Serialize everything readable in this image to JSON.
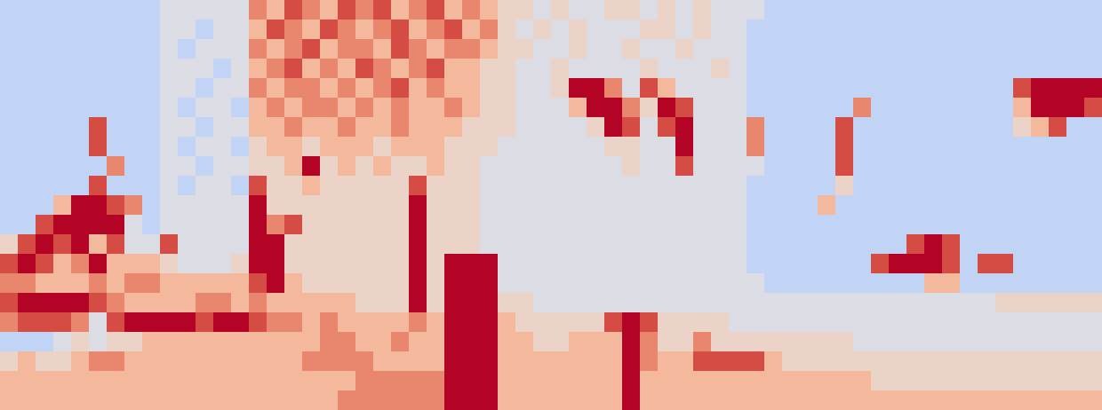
{
  "chart_data": {
    "type": "heatmap",
    "tick_labels": false,
    "color_range": [
      0,
      9
    ],
    "cells": [
      [
        3,
        3,
        3,
        3,
        3,
        3,
        3,
        3,
        3,
        4,
        4,
        4,
        4,
        4,
        7,
        6,
        8,
        7,
        6,
        8,
        7,
        8,
        6,
        7,
        8,
        6,
        7,
        6,
        5,
        5,
        4,
        5,
        4,
        4,
        5,
        5,
        4,
        5,
        4,
        5,
        4,
        4,
        4,
        3,
        3,
        3,
        3,
        3,
        3,
        3,
        3,
        3,
        3,
        3,
        3,
        3,
        3,
        3,
        3,
        3,
        3,
        3
      ],
      [
        3,
        3,
        3,
        3,
        3,
        3,
        3,
        3,
        3,
        4,
        4,
        3,
        4,
        4,
        6,
        8,
        7,
        6,
        8,
        7,
        6,
        7,
        8,
        6,
        7,
        8,
        6,
        7,
        5,
        4,
        5,
        4,
        5,
        4,
        4,
        4,
        5,
        5,
        4,
        5,
        4,
        4,
        3,
        3,
        3,
        3,
        3,
        3,
        3,
        3,
        3,
        3,
        3,
        3,
        3,
        3,
        3,
        3,
        3,
        3,
        3,
        3
      ],
      [
        3,
        3,
        3,
        3,
        3,
        3,
        3,
        3,
        3,
        4,
        3,
        4,
        4,
        4,
        7,
        6,
        7,
        8,
        6,
        7,
        7,
        6,
        8,
        7,
        6,
        7,
        7,
        6,
        5,
        5,
        4,
        4,
        5,
        4,
        4,
        5,
        4,
        4,
        5,
        4,
        4,
        4,
        3,
        3,
        3,
        3,
        3,
        3,
        3,
        3,
        3,
        3,
        3,
        3,
        3,
        3,
        3,
        3,
        3,
        3,
        3,
        3
      ],
      [
        3,
        3,
        3,
        3,
        3,
        3,
        3,
        3,
        3,
        4,
        4,
        4,
        3,
        4,
        6,
        7,
        8,
        6,
        7,
        6,
        8,
        7,
        6,
        7,
        8,
        6,
        6,
        5,
        5,
        4,
        4,
        5,
        4,
        4,
        4,
        4,
        5,
        4,
        4,
        4,
        5,
        4,
        3,
        3,
        3,
        3,
        3,
        3,
        3,
        3,
        3,
        3,
        3,
        3,
        3,
        3,
        3,
        3,
        3,
        3,
        3,
        3
      ],
      [
        3,
        3,
        3,
        3,
        3,
        3,
        3,
        3,
        3,
        4,
        4,
        3,
        4,
        4,
        7,
        6,
        7,
        7,
        6,
        7,
        6,
        7,
        8,
        6,
        7,
        6,
        6,
        5,
        5,
        4,
        4,
        5,
        9,
        9,
        7,
        4,
        8,
        6,
        4,
        4,
        4,
        4,
        3,
        3,
        3,
        3,
        3,
        3,
        3,
        3,
        3,
        3,
        3,
        3,
        3,
        3,
        3,
        8,
        9,
        9,
        9,
        9
      ],
      [
        3,
        3,
        3,
        3,
        3,
        3,
        3,
        3,
        3,
        4,
        3,
        4,
        4,
        3,
        6,
        7,
        6,
        7,
        7,
        6,
        7,
        6,
        7,
        6,
        6,
        7,
        6,
        5,
        5,
        4,
        4,
        4,
        6,
        9,
        9,
        7,
        5,
        9,
        8,
        4,
        4,
        4,
        3,
        3,
        3,
        3,
        3,
        3,
        7,
        3,
        3,
        3,
        3,
        3,
        3,
        3,
        3,
        6,
        9,
        9,
        9,
        8
      ],
      [
        3,
        3,
        3,
        3,
        3,
        8,
        3,
        3,
        3,
        4,
        4,
        3,
        4,
        4,
        6,
        6,
        7,
        6,
        6,
        7,
        6,
        6,
        7,
        6,
        6,
        6,
        5,
        5,
        5,
        4,
        4,
        4,
        4,
        5,
        9,
        8,
        4,
        8,
        9,
        4,
        4,
        4,
        7,
        3,
        3,
        3,
        3,
        8,
        3,
        3,
        3,
        3,
        3,
        3,
        3,
        3,
        3,
        5,
        6,
        8,
        3,
        3
      ],
      [
        3,
        3,
        3,
        3,
        3,
        8,
        3,
        3,
        3,
        4,
        3,
        4,
        4,
        3,
        5,
        6,
        6,
        5,
        6,
        6,
        6,
        5,
        6,
        6,
        6,
        5,
        5,
        5,
        4,
        4,
        4,
        4,
        4,
        4,
        5,
        5,
        4,
        4,
        9,
        4,
        4,
        4,
        7,
        3,
        3,
        3,
        3,
        8,
        3,
        3,
        3,
        3,
        3,
        3,
        3,
        3,
        3,
        3,
        3,
        3,
        3,
        3
      ],
      [
        3,
        3,
        3,
        3,
        3,
        3,
        7,
        3,
        3,
        4,
        4,
        3,
        4,
        4,
        5,
        5,
        6,
        9,
        5,
        6,
        5,
        6,
        5,
        5,
        6,
        5,
        5,
        4,
        4,
        4,
        4,
        4,
        4,
        4,
        4,
        5,
        4,
        4,
        8,
        4,
        4,
        4,
        4,
        3,
        3,
        3,
        3,
        8,
        3,
        3,
        3,
        3,
        3,
        3,
        3,
        3,
        3,
        3,
        3,
        3,
        3,
        3
      ],
      [
        3,
        3,
        3,
        3,
        3,
        8,
        3,
        3,
        3,
        4,
        3,
        4,
        4,
        3,
        8,
        5,
        5,
        6,
        5,
        5,
        5,
        5,
        5,
        8,
        5,
        5,
        5,
        4,
        4,
        4,
        4,
        4,
        4,
        4,
        4,
        4,
        4,
        4,
        4,
        4,
        4,
        4,
        3,
        3,
        3,
        3,
        3,
        5,
        3,
        3,
        3,
        3,
        3,
        3,
        3,
        3,
        3,
        3,
        3,
        3,
        3,
        3
      ],
      [
        3,
        3,
        3,
        6,
        9,
        9,
        8,
        7,
        3,
        4,
        4,
        4,
        4,
        4,
        9,
        5,
        5,
        5,
        5,
        5,
        5,
        5,
        5,
        9,
        5,
        5,
        5,
        4,
        4,
        4,
        4,
        4,
        4,
        4,
        4,
        4,
        4,
        4,
        4,
        4,
        4,
        4,
        3,
        3,
        3,
        3,
        6,
        3,
        3,
        3,
        3,
        3,
        3,
        3,
        3,
        3,
        3,
        3,
        3,
        3,
        3,
        3
      ],
      [
        3,
        3,
        8,
        9,
        9,
        9,
        9,
        4,
        3,
        4,
        4,
        4,
        4,
        4,
        9,
        7,
        8,
        5,
        5,
        5,
        5,
        5,
        5,
        9,
        5,
        5,
        5,
        4,
        4,
        4,
        4,
        4,
        4,
        4,
        4,
        4,
        4,
        4,
        4,
        4,
        4,
        4,
        3,
        3,
        3,
        3,
        3,
        3,
        3,
        3,
        3,
        3,
        3,
        3,
        3,
        3,
        3,
        3,
        3,
        3,
        3,
        3
      ],
      [
        5,
        8,
        9,
        8,
        9,
        6,
        8,
        4,
        4,
        8,
        4,
        4,
        4,
        4,
        9,
        9,
        5,
        5,
        5,
        5,
        5,
        5,
        5,
        9,
        5,
        5,
        5,
        4,
        4,
        4,
        4,
        4,
        4,
        4,
        4,
        4,
        4,
        4,
        4,
        4,
        4,
        4,
        3,
        3,
        3,
        3,
        3,
        3,
        3,
        3,
        3,
        8,
        9,
        8,
        3,
        3,
        3,
        3,
        3,
        3,
        3,
        3
      ],
      [
        8,
        9,
        8,
        6,
        7,
        9,
        6,
        6,
        6,
        5,
        4,
        4,
        4,
        5,
        9,
        9,
        5,
        5,
        5,
        5,
        5,
        5,
        5,
        9,
        5,
        9,
        9,
        9,
        4,
        4,
        4,
        4,
        4,
        4,
        4,
        4,
        4,
        4,
        4,
        4,
        4,
        4,
        3,
        3,
        3,
        3,
        3,
        3,
        3,
        8,
        9,
        9,
        9,
        8,
        3,
        8,
        8,
        3,
        3,
        3,
        3,
        3
      ],
      [
        7,
        7,
        6,
        6,
        6,
        7,
        6,
        7,
        7,
        6,
        6,
        6,
        6,
        6,
        8,
        9,
        6,
        5,
        5,
        5,
        5,
        5,
        5,
        9,
        5,
        9,
        9,
        9,
        4,
        4,
        4,
        4,
        4,
        4,
        4,
        4,
        4,
        4,
        4,
        4,
        4,
        4,
        4,
        3,
        3,
        3,
        3,
        3,
        3,
        3,
        3,
        3,
        6,
        6,
        3,
        3,
        3,
        3,
        3,
        3,
        3,
        3
      ],
      [
        8,
        9,
        9,
        9,
        9,
        8,
        7,
        6,
        6,
        6,
        6,
        7,
        7,
        6,
        7,
        6,
        6,
        6,
        6,
        6,
        5,
        5,
        5,
        9,
        5,
        9,
        9,
        9,
        5,
        5,
        4,
        4,
        4,
        4,
        4,
        4,
        4,
        4,
        4,
        4,
        4,
        4,
        4,
        4,
        4,
        4,
        4,
        4,
        4,
        4,
        4,
        4,
        4,
        4,
        4,
        4,
        5,
        5,
        5,
        5,
        5,
        5
      ],
      [
        7,
        8,
        8,
        8,
        7,
        4,
        8,
        9,
        9,
        9,
        9,
        8,
        9,
        9,
        8,
        7,
        7,
        6,
        7,
        6,
        6,
        6,
        6,
        7,
        6,
        9,
        9,
        9,
        6,
        5,
        5,
        5,
        5,
        5,
        8,
        9,
        8,
        5,
        5,
        5,
        5,
        4,
        4,
        4,
        4,
        4,
        4,
        4,
        4,
        4,
        4,
        4,
        4,
        4,
        4,
        4,
        4,
        4,
        4,
        4,
        4,
        4
      ],
      [
        3,
        3,
        3,
        4,
        5,
        4,
        5,
        5,
        6,
        6,
        6,
        6,
        6,
        6,
        6,
        6,
        6,
        6,
        7,
        7,
        6,
        6,
        7,
        6,
        6,
        9,
        9,
        9,
        6,
        6,
        5,
        5,
        6,
        6,
        6,
        9,
        7,
        5,
        5,
        7,
        5,
        5,
        5,
        5,
        5,
        5,
        5,
        5,
        4,
        4,
        4,
        4,
        4,
        4,
        4,
        4,
        4,
        4,
        4,
        4,
        4,
        4
      ],
      [
        5,
        6,
        5,
        5,
        6,
        7,
        7,
        6,
        6,
        6,
        6,
        6,
        6,
        6,
        6,
        6,
        6,
        7,
        7,
        7,
        7,
        6,
        6,
        6,
        6,
        9,
        9,
        9,
        6,
        6,
        6,
        6,
        6,
        6,
        6,
        9,
        7,
        6,
        6,
        8,
        8,
        8,
        8,
        6,
        5,
        5,
        5,
        5,
        5,
        5,
        5,
        5,
        5,
        5,
        5,
        5,
        5,
        5,
        5,
        5,
        5,
        5
      ],
      [
        6,
        6,
        6,
        6,
        6,
        6,
        6,
        6,
        6,
        6,
        6,
        6,
        6,
        6,
        6,
        6,
        6,
        6,
        6,
        6,
        7,
        7,
        7,
        7,
        7,
        9,
        9,
        9,
        6,
        6,
        6,
        6,
        6,
        6,
        6,
        9,
        6,
        6,
        6,
        6,
        6,
        6,
        6,
        6,
        6,
        6,
        6,
        6,
        6,
        5,
        5,
        5,
        5,
        5,
        5,
        5,
        5,
        5,
        5,
        5,
        5,
        5
      ],
      [
        6,
        6,
        6,
        6,
        6,
        6,
        6,
        6,
        6,
        6,
        6,
        6,
        6,
        6,
        6,
        6,
        6,
        6,
        6,
        7,
        7,
        7,
        7,
        7,
        7,
        9,
        9,
        9,
        6,
        6,
        6,
        6,
        6,
        6,
        6,
        9,
        6,
        6,
        6,
        6,
        6,
        6,
        6,
        6,
        6,
        6,
        6,
        6,
        6,
        6,
        6,
        6,
        6,
        6,
        6,
        6,
        6,
        6,
        6,
        6,
        6,
        6
      ]
    ]
  }
}
